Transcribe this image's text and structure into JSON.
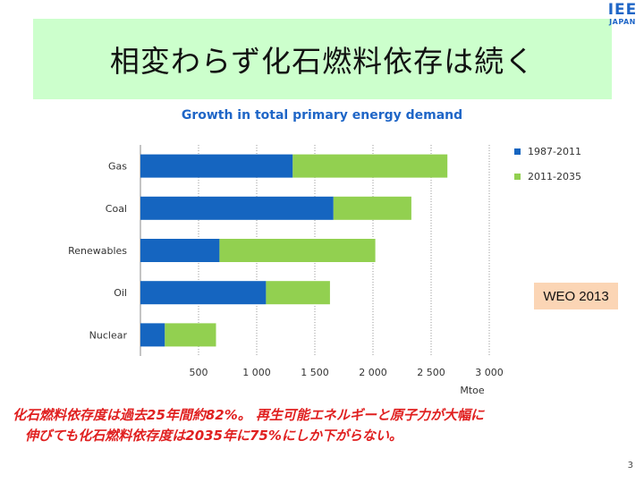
{
  "slide": {
    "title": "相変わらず化石燃料依存は続く",
    "logo_top": "IEE",
    "logo_bottom": "JAPAN",
    "source_box": "WEO 2013",
    "note_line1": "化石燃料依存度は過去25年間約82%。 再生可能エネルギーと原子力が大幅に",
    "note_line2": "伸びても化石燃料依存度は2035年に75%にしか下がらない。",
    "page_number": "3"
  },
  "chart_data": {
    "type": "bar",
    "orientation": "horizontal",
    "stacked": true,
    "title": "Growth in total primary energy demand",
    "xlabel": "Mtoe",
    "ylabel": "",
    "xlim": [
      0,
      3000
    ],
    "xticks": [
      500,
      1000,
      1500,
      2000,
      2500,
      3000
    ],
    "xtick_labels": [
      "500",
      "1 000",
      "1 500",
      "2 000",
      "2 500",
      "3 000"
    ],
    "grid": "vertical-dashed",
    "legend_position": "right",
    "categories": [
      "Gas",
      "Coal",
      "Renewables",
      "Oil",
      "Nuclear"
    ],
    "series": [
      {
        "name": "1987-2011",
        "color": "#1565c0",
        "values": [
          1310,
          1660,
          680,
          1080,
          210
        ]
      },
      {
        "name": "2011-2035",
        "color": "#92d050",
        "values": [
          1330,
          670,
          1340,
          550,
          440
        ]
      }
    ]
  }
}
